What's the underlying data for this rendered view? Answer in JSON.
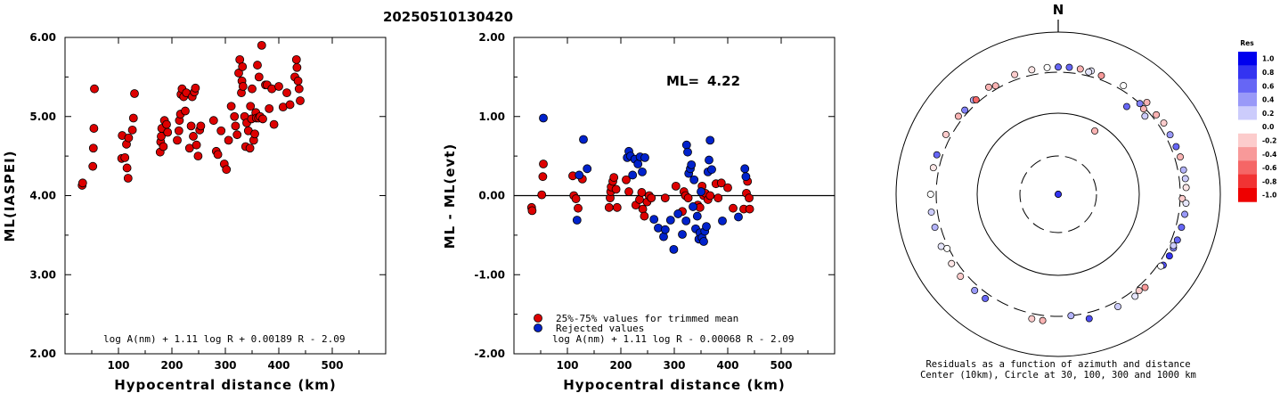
{
  "title": "20250510130420",
  "chart_data": [
    {
      "type": "scatter",
      "xlabel": "Hypocentral distance (km)",
      "ylabel": "ML(IASPEI)",
      "xlim": [
        0,
        600
      ],
      "ylim": [
        2.0,
        6.0
      ],
      "xticks": [
        "100",
        "200",
        "300",
        "400",
        "500"
      ],
      "yticks": [
        "2.00",
        "3.00",
        "4.00",
        "5.00",
        "6.00"
      ],
      "grid": false,
      "annotation": "log A(nm) + 1.11 log R + 0.00189 R - 2.09",
      "marker_color": "#dd0000",
      "points": [
        [
          32,
          4.13
        ],
        [
          33,
          4.16
        ],
        [
          52,
          4.37
        ],
        [
          53,
          4.6
        ],
        [
          54,
          4.85
        ],
        [
          55,
          5.35
        ],
        [
          106,
          4.47
        ],
        [
          107,
          4.76
        ],
        [
          112,
          4.48
        ],
        [
          115,
          4.65
        ],
        [
          116,
          4.35
        ],
        [
          118,
          4.22
        ],
        [
          119,
          4.73
        ],
        [
          126,
          4.83
        ],
        [
          128,
          4.98
        ],
        [
          130,
          5.29
        ],
        [
          178,
          4.55
        ],
        [
          179,
          4.68
        ],
        [
          180,
          4.75
        ],
        [
          181,
          4.85
        ],
        [
          184,
          4.62
        ],
        [
          186,
          4.95
        ],
        [
          190,
          4.9
        ],
        [
          192,
          4.8
        ],
        [
          210,
          4.7
        ],
        [
          213,
          4.82
        ],
        [
          214,
          4.95
        ],
        [
          216,
          5.03
        ],
        [
          217,
          5.28
        ],
        [
          219,
          5.35
        ],
        [
          222,
          5.25
        ],
        [
          225,
          5.07
        ],
        [
          227,
          5.3
        ],
        [
          233,
          4.6
        ],
        [
          236,
          4.88
        ],
        [
          238,
          5.25
        ],
        [
          240,
          4.75
        ],
        [
          242,
          5.31
        ],
        [
          244,
          5.36
        ],
        [
          246,
          4.64
        ],
        [
          249,
          4.5
        ],
        [
          252,
          4.83
        ],
        [
          254,
          4.88
        ],
        [
          278,
          4.95
        ],
        [
          283,
          4.56
        ],
        [
          286,
          4.52
        ],
        [
          292,
          4.82
        ],
        [
          298,
          4.4
        ],
        [
          302,
          4.33
        ],
        [
          306,
          4.7
        ],
        [
          311,
          5.13
        ],
        [
          317,
          5.0
        ],
        [
          319,
          4.88
        ],
        [
          322,
          4.77
        ],
        [
          325,
          5.55
        ],
        [
          327,
          5.72
        ],
        [
          330,
          5.3
        ],
        [
          331,
          5.45
        ],
        [
          332,
          5.63
        ],
        [
          333,
          5.38
        ],
        [
          336,
          5.0
        ],
        [
          338,
          4.62
        ],
        [
          340,
          4.92
        ],
        [
          343,
          4.82
        ],
        [
          346,
          4.6
        ],
        [
          347,
          5.13
        ],
        [
          349,
          4.97
        ],
        [
          350,
          5.35
        ],
        [
          353,
          4.7
        ],
        [
          355,
          4.78
        ],
        [
          357,
          5.05
        ],
        [
          358,
          4.98
        ],
        [
          360,
          5.65
        ],
        [
          362,
          4.98
        ],
        [
          363,
          5.5
        ],
        [
          365,
          5.0
        ],
        [
          368,
          5.9
        ],
        [
          370,
          4.97
        ],
        [
          375,
          5.4
        ],
        [
          378,
          5.4
        ],
        [
          382,
          5.1
        ],
        [
          387,
          5.35
        ],
        [
          391,
          4.9
        ],
        [
          400,
          5.38
        ],
        [
          408,
          5.12
        ],
        [
          415,
          5.3
        ],
        [
          421,
          5.15
        ],
        [
          430,
          5.5
        ],
        [
          433,
          5.72
        ],
        [
          434,
          5.62
        ],
        [
          436,
          5.45
        ],
        [
          438,
          5.35
        ],
        [
          440,
          5.2
        ]
      ]
    },
    {
      "type": "scatter",
      "xlabel": "Hypocentral distance (km)",
      "ylabel": "ML - ML(evt)",
      "xlim": [
        0,
        600
      ],
      "ylim": [
        -2.0,
        2.0
      ],
      "xticks": [
        "100",
        "200",
        "300",
        "400",
        "500"
      ],
      "yticks": [
        "-2.00",
        "-1.00",
        "0.00",
        "1.00",
        "2.00"
      ],
      "grid": false,
      "ml_label": "ML=",
      "ml_value": "4.22",
      "annotation": "log A(nm) + 1.11 log R - 0.00068 R - 2.09",
      "legend": [
        {
          "label": "25%-75% values for trimmed mean",
          "color": "#dd0000"
        },
        {
          "label": "Rejected values",
          "color": "#0022cc"
        }
      ],
      "series": [
        {
          "name": "25%-75% values for trimmed mean",
          "color": "#dd0000",
          "points": [
            [
              33,
              -0.15
            ],
            [
              34,
              -0.19
            ],
            [
              52,
              0.01
            ],
            [
              54,
              0.24
            ],
            [
              55,
              0.4
            ],
            [
              110,
              0.25
            ],
            [
              112,
              0.0
            ],
            [
              116,
              -0.04
            ],
            [
              120,
              -0.16
            ],
            [
              128,
              0.21
            ],
            [
              178,
              -0.15
            ],
            [
              180,
              -0.03
            ],
            [
              181,
              0.05
            ],
            [
              182,
              0.11
            ],
            [
              185,
              0.18
            ],
            [
              187,
              0.23
            ],
            [
              191,
              0.08
            ],
            [
              193,
              -0.15
            ],
            [
              210,
              0.2
            ],
            [
              215,
              0.05
            ],
            [
              228,
              -0.12
            ],
            [
              235,
              -0.05
            ],
            [
              239,
              0.04
            ],
            [
              241,
              -0.17
            ],
            [
              244,
              -0.26
            ],
            [
              249,
              -0.08
            ],
            [
              253,
              0.0
            ],
            [
              257,
              -0.03
            ],
            [
              283,
              -0.03
            ],
            [
              303,
              0.12
            ],
            [
              315,
              -0.2
            ],
            [
              318,
              0.05
            ],
            [
              321,
              0.0
            ],
            [
              326,
              -0.03
            ],
            [
              344,
              -0.12
            ],
            [
              348,
              -0.15
            ],
            [
              352,
              0.12
            ],
            [
              355,
              0.0
            ],
            [
              358,
              0.03
            ],
            [
              363,
              -0.05
            ],
            [
              367,
              0.0
            ],
            [
              378,
              0.15
            ],
            [
              382,
              -0.03
            ],
            [
              388,
              0.16
            ],
            [
              400,
              0.1
            ],
            [
              410,
              -0.16
            ],
            [
              430,
              -0.17
            ],
            [
              435,
              0.03
            ],
            [
              437,
              0.18
            ],
            [
              440,
              -0.03
            ],
            [
              441,
              -0.17
            ]
          ]
        },
        {
          "name": "Rejected values",
          "color": "#0022cc",
          "points": [
            [
              55,
              0.98
            ],
            [
              118,
              -0.31
            ],
            [
              122,
              0.26
            ],
            [
              130,
              0.71
            ],
            [
              137,
              0.34
            ],
            [
              212,
              0.48
            ],
            [
              215,
              0.56
            ],
            [
              218,
              0.5
            ],
            [
              222,
              0.26
            ],
            [
              226,
              0.46
            ],
            [
              232,
              0.4
            ],
            [
              236,
              0.49
            ],
            [
              240,
              0.3
            ],
            [
              245,
              0.48
            ],
            [
              262,
              -0.3
            ],
            [
              270,
              -0.41
            ],
            [
              280,
              -0.52
            ],
            [
              283,
              -0.43
            ],
            [
              293,
              -0.31
            ],
            [
              299,
              -0.68
            ],
            [
              307,
              -0.23
            ],
            [
              315,
              -0.49
            ],
            [
              322,
              -0.32
            ],
            [
              323,
              0.64
            ],
            [
              325,
              0.55
            ],
            [
              327,
              0.28
            ],
            [
              330,
              0.34
            ],
            [
              332,
              0.39
            ],
            [
              335,
              -0.14
            ],
            [
              337,
              0.2
            ],
            [
              340,
              -0.42
            ],
            [
              343,
              -0.26
            ],
            [
              346,
              -0.55
            ],
            [
              348,
              -0.47
            ],
            [
              350,
              0.05
            ],
            [
              352,
              -0.53
            ],
            [
              355,
              -0.58
            ],
            [
              357,
              -0.45
            ],
            [
              360,
              -0.39
            ],
            [
              363,
              0.3
            ],
            [
              365,
              0.45
            ],
            [
              367,
              0.7
            ],
            [
              370,
              0.33
            ],
            [
              390,
              -0.32
            ],
            [
              420,
              -0.27
            ],
            [
              432,
              0.34
            ],
            [
              434,
              0.24
            ]
          ]
        }
      ]
    },
    {
      "type": "polar",
      "label": "N",
      "caption_line1": "Residuals as a function of azimuth and distance",
      "caption_line2": "Center (10km), Circle at 30, 100, 300 and 1000 km",
      "colorbar_title": "Res",
      "colorbar_ticks": [
        "1.0",
        "0.8",
        "0.6",
        "0.4",
        "0.2",
        "0.0",
        "-0.2",
        "-0.4",
        "-0.6",
        "-0.8",
        "-1.0"
      ],
      "positive_color": "#0000ee",
      "negative_color": "#ee0000",
      "stations": [
        [
          180,
          5,
          -0.1
        ],
        [
          82,
          7,
          0.8
        ],
        [
          92,
          320,
          -0.2
        ],
        [
          42,
          300,
          0.5
        ],
        [
          45,
          290,
          -0.3
        ],
        [
          48,
          260,
          0.2
        ],
        [
          38,
          225,
          0.6
        ],
        [
          30,
          80,
          -0.3
        ],
        [
          10,
          350,
          -0.3
        ],
        [
          15,
          355,
          0.1
        ],
        [
          0,
          350,
          0.6
        ],
        [
          5,
          352,
          0.6
        ],
        [
          355,
          350,
          0.0
        ],
        [
          348,
          350,
          -0.1
        ],
        [
          340,
          352,
          -0.2
        ],
        [
          327,
          355,
          -0.3
        ],
        [
          318,
          345,
          0.3
        ],
        [
          308,
          345,
          -0.3
        ],
        [
          298,
          350,
          -0.2
        ],
        [
          288,
          355,
          0.6
        ],
        [
          282,
          355,
          -0.1
        ],
        [
          270,
          355,
          0.0
        ],
        [
          262,
          360,
          0.2
        ],
        [
          255,
          355,
          0.3
        ],
        [
          246,
          360,
          0.1
        ],
        [
          237,
          350,
          -0.1
        ],
        [
          230,
          355,
          -0.2
        ],
        [
          221,
          352,
          0.4
        ],
        [
          215,
          350,
          0.6
        ],
        [
          192,
          350,
          -0.2
        ],
        [
          187,
          350,
          -0.3
        ],
        [
          174,
          300,
          0.3
        ],
        [
          166,
          360,
          0.7
        ],
        [
          152,
          350,
          0.2
        ],
        [
          143,
          355,
          0.1
        ],
        [
          137,
          352,
          -0.4
        ],
        [
          124,
          345,
          0.7
        ],
        [
          119,
          350,
          0.8
        ],
        [
          115,
          350,
          0.5
        ],
        [
          111,
          355,
          0.6
        ],
        [
          105,
          355,
          0.6
        ],
        [
          99,
          360,
          0.4
        ],
        [
          94,
          360,
          0.1
        ],
        [
          87,
          360,
          -0.1
        ],
        [
          83,
          360,
          0.2
        ],
        [
          79,
          355,
          0.3
        ],
        [
          73,
          355,
          -0.3
        ],
        [
          68,
          350,
          0.6
        ],
        [
          62,
          345,
          0.4
        ],
        [
          56,
          352,
          -0.2
        ],
        [
          51,
          340,
          -0.3
        ],
        [
          44,
          355,
          -0.3
        ],
        [
          31,
          345,
          0.0
        ],
        [
          20,
          340,
          -0.4
        ],
        [
          14,
          338,
          0.1
        ],
        [
          319,
          330,
          -0.6
        ],
        [
          312,
          335,
          0.5
        ],
        [
          330,
          330,
          -0.3
        ],
        [
          244,
          315,
          0.0
        ],
        [
          140,
          335,
          -0.2
        ],
        [
          125,
          330,
          0.0
        ],
        [
          114,
          340,
          0.2
        ]
      ]
    }
  ]
}
